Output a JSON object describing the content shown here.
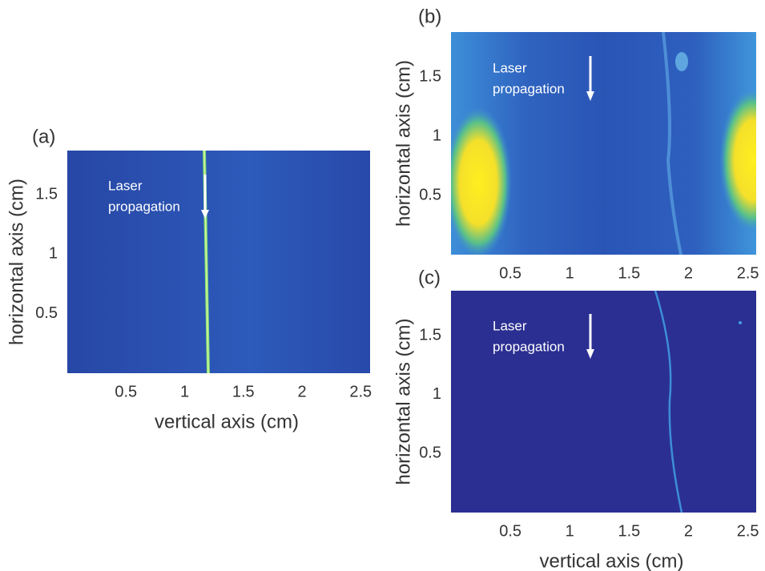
{
  "chart_data": [
    {
      "type": "image",
      "panel_label": "(a)",
      "annotation_lines": [
        "Laser",
        "propagation"
      ],
      "xlabel": "vertical axis (cm)",
      "ylabel": "horizontal axis (cm)",
      "xlim": [
        0,
        2.58
      ],
      "ylim": [
        0,
        1.87
      ],
      "xticks": [
        0.5,
        1,
        1.5,
        2,
        2.5
      ],
      "yticks": [
        0.5,
        1,
        1.5
      ]
    },
    {
      "type": "image",
      "panel_label": "(b)",
      "annotation_lines": [
        "Laser",
        "propagation"
      ],
      "ylabel": "horizontal axis (cm)",
      "xlim": [
        0,
        2.57
      ],
      "ylim": [
        0,
        1.88
      ],
      "xticks": [
        0.5,
        1,
        1.5,
        2,
        2.5
      ],
      "yticks": [
        0.5,
        1,
        1.5
      ]
    },
    {
      "type": "image",
      "panel_label": "(c)",
      "annotation_lines": [
        "Laser",
        "propagation"
      ],
      "xlabel": "vertical axis (cm)",
      "ylabel": "horizontal axis (cm)",
      "xlim": [
        0,
        2.57
      ],
      "ylim": [
        0,
        1.88
      ],
      "xticks": [
        0.5,
        1,
        1.5,
        2,
        2.5
      ],
      "yticks": [
        0.5,
        1,
        1.5
      ]
    }
  ]
}
